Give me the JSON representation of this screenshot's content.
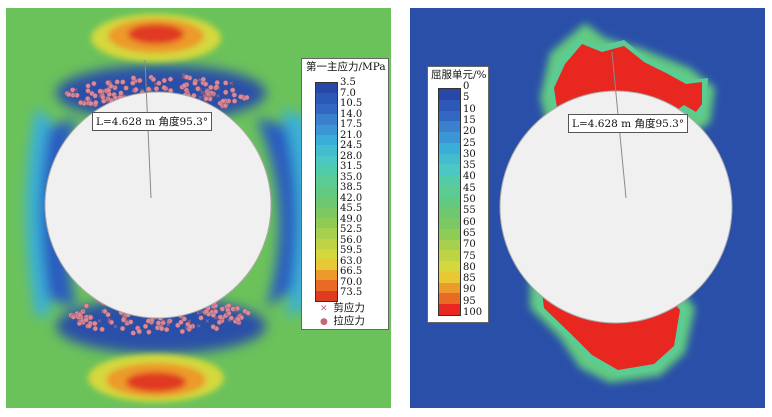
{
  "left_panel": {
    "legend": {
      "title": "第一主应力/MPa",
      "values": [
        "3.5",
        "7.0",
        "10.5",
        "14.0",
        "17.5",
        "21.0",
        "24.5",
        "28.0",
        "31.5",
        "35.0",
        "38.5",
        "42.0",
        "45.5",
        "49.0",
        "52.5",
        "56.0",
        "59.5",
        "63.0",
        "66.5",
        "70.0",
        "73.5"
      ],
      "colors": [
        "#2848a8",
        "#2c58b8",
        "#3268c4",
        "#3a80cc",
        "#3a96d4",
        "#3aaed8",
        "#44bcd0",
        "#4cc8c4",
        "#52cca8",
        "#5acc94",
        "#62ca80",
        "#6ec870",
        "#7cc862",
        "#8ecc56",
        "#a6d04e",
        "#bed444",
        "#d4d83c",
        "#e8c834",
        "#ec9a2c",
        "#e86a24",
        "#e03a20"
      ],
      "shear_label": "剪应力",
      "tension_label": "拉应力"
    },
    "annotation": "L=4.628 m  角度95.3°"
  },
  "right_panel": {
    "legend": {
      "title": "屈服单元/%",
      "values": [
        "0",
        "5",
        "10",
        "15",
        "20",
        "25",
        "30",
        "35",
        "40",
        "45",
        "50",
        "55",
        "60",
        "65",
        "70",
        "75",
        "80",
        "85",
        "90",
        "95",
        "100"
      ],
      "colors": [
        "#2848a8",
        "#2c58b8",
        "#3268c4",
        "#3a80cc",
        "#3a96d4",
        "#3aaed8",
        "#44bcd0",
        "#4cc8c4",
        "#52cca8",
        "#5acc94",
        "#62ca80",
        "#6ec870",
        "#7cc862",
        "#8ecc56",
        "#a6d04e",
        "#bed444",
        "#d4d83c",
        "#e8c834",
        "#ec9a2c",
        "#e86a24",
        "#e82820"
      ]
    },
    "annotation": "L=4.628 m  角度95.3°"
  },
  "colors": {
    "field_green": "#6cc25a",
    "field_blue": "#2a4fa8",
    "tunnel_fill": "#f0f0f0",
    "red": "#e82820",
    "marker_pink": "#d98a9c"
  }
}
